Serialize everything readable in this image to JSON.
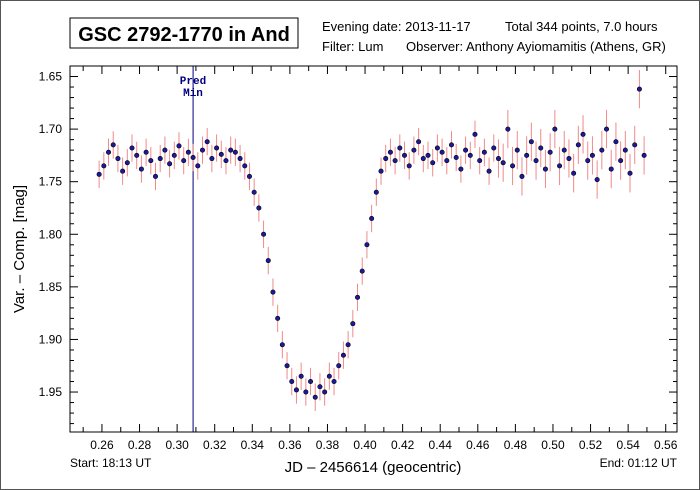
{
  "chart_data": {
    "type": "scatter",
    "title": "GSC 2792-1770 in And",
    "info": {
      "evening_date": "Evening date: 2013-11-17",
      "total": "Total 344 points, 7.0 hours",
      "filter": "Filter: Lum",
      "observer": "Observer: Anthony Ayiomamitis (Athens, GR)",
      "start": "Start: 18:13 UT",
      "end": "End: 01:12 UT"
    },
    "xlabel": "JD – 2456614  (geocentric)",
    "ylabel": "Var. – Comp. [mag]",
    "xlim": [
      0.243,
      0.566
    ],
    "ylim": [
      1.988,
      1.64
    ],
    "xticks": [
      "0.26",
      "0.28",
      "0.30",
      "0.32",
      "0.34",
      "0.36",
      "0.38",
      "0.40",
      "0.42",
      "0.44",
      "0.46",
      "0.48",
      "0.50",
      "0.52",
      "0.54",
      "0.56"
    ],
    "yticks": [
      "1.65",
      "1.70",
      "1.75",
      "1.80",
      "1.85",
      "1.90",
      "1.95"
    ],
    "pred_min": {
      "x": 0.3085,
      "label_line1": "Pred",
      "label_line2": "Min"
    },
    "x_start": 0.2585,
    "x_step": 0.0025,
    "y_error": 0.013,
    "y": [
      1.743,
      1.735,
      1.722,
      1.715,
      1.728,
      1.74,
      1.732,
      1.718,
      1.725,
      1.738,
      1.722,
      1.73,
      1.745,
      1.728,
      1.72,
      1.733,
      1.725,
      1.716,
      1.73,
      1.722,
      1.727,
      1.735,
      1.72,
      1.712,
      1.728,
      1.718,
      1.724,
      1.73,
      1.72,
      1.722,
      1.728,
      1.735,
      1.745,
      1.76,
      1.775,
      1.8,
      1.825,
      1.855,
      1.88,
      1.905,
      1.925,
      1.94,
      1.948,
      1.935,
      1.95,
      1.94,
      1.955,
      1.945,
      1.95,
      1.935,
      1.94,
      1.925,
      1.915,
      1.905,
      1.885,
      1.86,
      1.835,
      1.81,
      1.785,
      1.76,
      1.74,
      1.728,
      1.722,
      1.73,
      1.718,
      1.725,
      1.735,
      1.72,
      1.712,
      1.728,
      1.725,
      1.732,
      1.718,
      1.722,
      1.73,
      1.715,
      1.727,
      1.738,
      1.72,
      1.725,
      1.705,
      1.73,
      1.722,
      1.74,
      1.718,
      1.728,
      1.732,
      1.7,
      1.735,
      1.72,
      1.745,
      1.725,
      1.712,
      1.73,
      1.718,
      1.738,
      1.722,
      1.7,
      1.735,
      1.72,
      1.728,
      1.742,
      1.715,
      1.705,
      1.73,
      1.725,
      1.748,
      1.72,
      1.7,
      1.738,
      1.712,
      1.73,
      1.72,
      1.742,
      1.715,
      1.662,
      1.725
    ],
    "colors": {
      "point": "#1a1aa0",
      "error_bar": "#f08a8a",
      "pred_line": "#000080"
    }
  }
}
